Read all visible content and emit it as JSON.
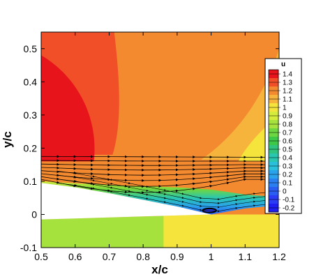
{
  "chart_data": {
    "type": "heatmap",
    "title": "",
    "variable": "u",
    "xlabel": "x/c",
    "ylabel": "y/c",
    "xlim": [
      0.5,
      1.2
    ],
    "ylim": [
      -0.1,
      0.55
    ],
    "x_ticks": [
      "0.5",
      "0.6",
      "0.7",
      "0.8",
      "0.9",
      "1",
      "1.1",
      "1.2"
    ],
    "y_ticks": [
      "-0.1",
      "0",
      "0.1",
      "0.2",
      "0.3",
      "0.4",
      "0.5"
    ],
    "legend": {
      "title": "u",
      "placement": "right",
      "levels": [
        {
          "label": "1.4",
          "value": 1.4,
          "color": "#e8141c"
        },
        {
          "label": "1.3",
          "value": 1.3,
          "color": "#f04f28"
        },
        {
          "label": "1.2",
          "value": 1.2,
          "color": "#f48a30"
        },
        {
          "label": "1.1",
          "value": 1.1,
          "color": "#f6b43c"
        },
        {
          "label": "1",
          "value": 1.0,
          "color": "#f4e43c"
        },
        {
          "label": "0.9",
          "value": 0.9,
          "color": "#d6ec3c"
        },
        {
          "label": "0.8",
          "value": 0.8,
          "color": "#a6e23e"
        },
        {
          "label": "0.7",
          "value": 0.7,
          "color": "#6ed640"
        },
        {
          "label": "0.6",
          "value": 0.6,
          "color": "#3ec848"
        },
        {
          "label": "0.5",
          "value": 0.5,
          "color": "#30c47e"
        },
        {
          "label": "0.4",
          "value": 0.4,
          "color": "#2ac6b0"
        },
        {
          "label": "0.3",
          "value": 0.3,
          "color": "#2ac0dc"
        },
        {
          "label": "0.2",
          "value": 0.2,
          "color": "#2aa2ec"
        },
        {
          "label": "0.1",
          "value": 0.1,
          "color": "#2a80f0"
        },
        {
          "label": "0",
          "value": 0.0,
          "color": "#2a5ef2"
        },
        {
          "label": "-0.1",
          "value": -0.1,
          "color": "#2a3cf4"
        },
        {
          "label": "-0.2",
          "value": -0.2,
          "color": "#1e1ef0"
        }
      ]
    },
    "regions": [
      {
        "name": "background",
        "level": 1.2
      },
      {
        "name": "upper-left-band",
        "level": 1.3
      },
      {
        "name": "left-core",
        "level": 1.4
      },
      {
        "name": "right-band",
        "level": 1.1
      },
      {
        "name": "right-core",
        "level": 1.0
      },
      {
        "name": "upper-right-band",
        "level": 1.1
      },
      {
        "name": "below-airfoil",
        "level": 0.8
      },
      {
        "name": "below-airfoil-right",
        "level": 1.0
      }
    ],
    "airfoil_upper": [
      [
        0.5,
        0.095
      ],
      [
        0.6,
        0.082
      ],
      [
        0.7,
        0.064
      ],
      [
        0.8,
        0.044
      ],
      [
        0.9,
        0.024
      ],
      [
        1.0,
        0.0
      ],
      [
        1.1,
        0.018
      ],
      [
        1.2,
        0.028
      ]
    ],
    "airfoil_lower": [
      [
        0.5,
        -0.015
      ],
      [
        0.6,
        -0.012
      ],
      [
        0.7,
        -0.009
      ],
      [
        0.8,
        -0.006
      ],
      [
        0.9,
        -0.003
      ],
      [
        1.0,
        0.0
      ]
    ],
    "boundary_layer_edge": [
      [
        0.5,
        0.1
      ],
      [
        0.6,
        0.094
      ],
      [
        0.7,
        0.09
      ],
      [
        0.8,
        0.085
      ],
      [
        0.9,
        0.082
      ],
      [
        1.0,
        0.075
      ],
      [
        1.1,
        0.06
      ],
      [
        1.2,
        0.052
      ]
    ],
    "recirculation": {
      "center": [
        0.995,
        0.012
      ],
      "rx": 0.02,
      "ry": 0.006
    },
    "streamlines_y": [
      0.175,
      0.163,
      0.152,
      0.142,
      0.132,
      0.123,
      0.114,
      0.106
    ]
  }
}
